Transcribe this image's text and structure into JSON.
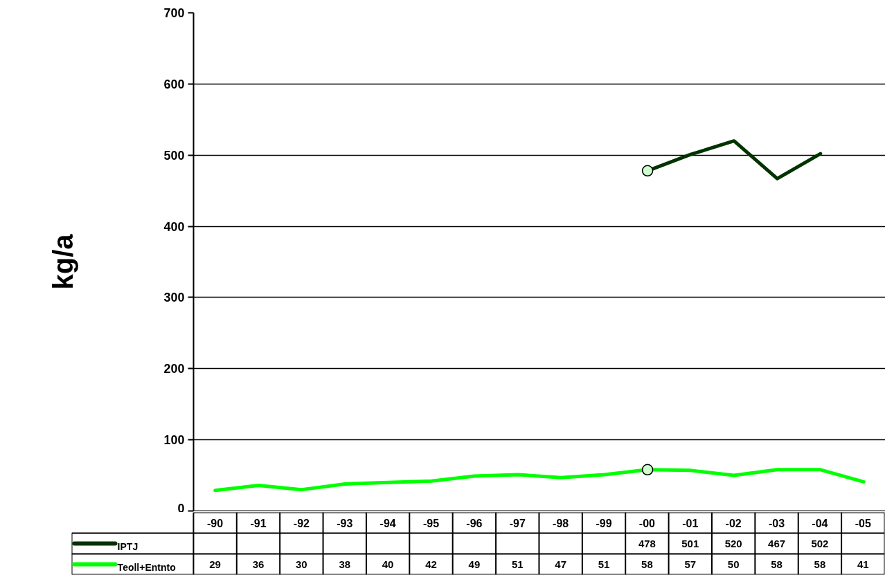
{
  "chart_data": {
    "type": "line",
    "ylabel": "kg/a",
    "categories": [
      "-90",
      "-91",
      "-92",
      "-93",
      "-94",
      "-95",
      "-96",
      "-97",
      "-98",
      "-99",
      "-00",
      "-01",
      "-02",
      "-03",
      "-04",
      "-05"
    ],
    "series": [
      {
        "name": "IPTJ",
        "color": "#003300",
        "values": [
          null,
          null,
          null,
          null,
          null,
          null,
          null,
          null,
          null,
          null,
          478,
          501,
          520,
          467,
          502,
          null
        ]
      },
      {
        "name": "Teoll+Entnto",
        "color": "#00ff00",
        "values": [
          29,
          36,
          30,
          38,
          40,
          42,
          49,
          51,
          47,
          51,
          58,
          57,
          50,
          58,
          58,
          41
        ]
      },
      {
        "type": "scatter",
        "color": "#ccffcc",
        "x": [
          "-00",
          "-00"
        ],
        "values": [
          478,
          58
        ],
        "value_labels": [
          null,
          null
        ]
      }
    ],
    "ylim": [
      0,
      700
    ],
    "yticks": [
      0,
      100,
      200,
      300,
      400,
      500,
      600,
      700
    ],
    "grid": "y",
    "legend": "bottom",
    "data_labels": true,
    "line_style": "solid"
  }
}
